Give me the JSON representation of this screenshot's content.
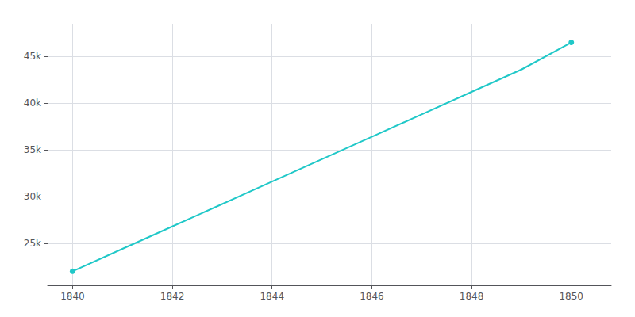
{
  "chart_data": {
    "type": "line",
    "x": [
      1840,
      1841,
      1842,
      1843,
      1844,
      1845,
      1846,
      1847,
      1848,
      1849,
      1850
    ],
    "values": [
      22000,
      24400,
      26800,
      29200,
      31600,
      34000,
      36400,
      38800,
      41200,
      43600,
      46500
    ],
    "color": "#20c8c8",
    "marker": "circle",
    "xlim": [
      1839.5,
      1850.8
    ],
    "ylim": [
      20500,
      48500
    ],
    "xticks": [
      1840,
      1842,
      1844,
      1846,
      1848,
      1850
    ],
    "yticks": [
      {
        "value": 25000,
        "label": "25k"
      },
      {
        "value": 30000,
        "label": "30k"
      },
      {
        "value": 35000,
        "label": "35k"
      },
      {
        "value": 40000,
        "label": "40k"
      },
      {
        "value": 45000,
        "label": "45k"
      }
    ],
    "grid": true
  }
}
